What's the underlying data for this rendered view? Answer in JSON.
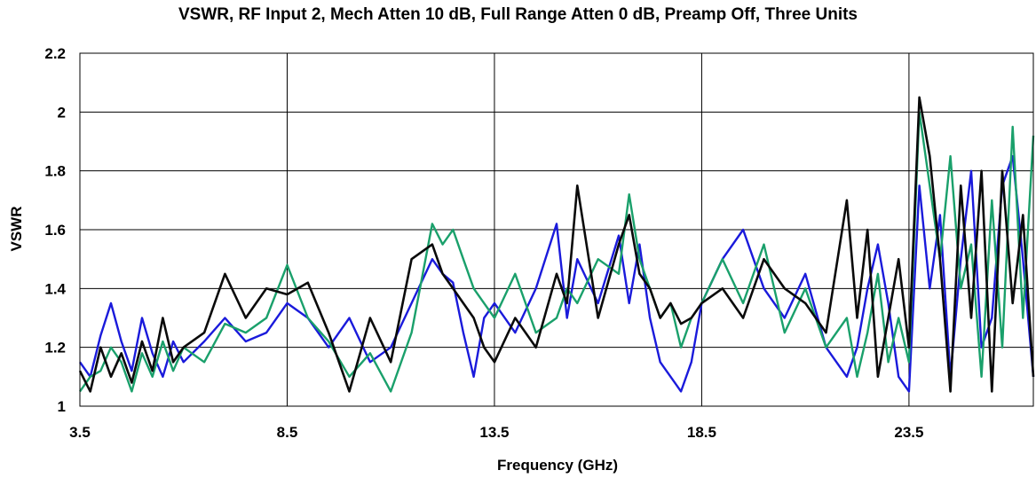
{
  "chart_data": {
    "type": "line",
    "title": "VSWR, RF Input 2, Mech Atten 10 dB, Full Range Atten 0 dB, Preamp Off, Three Units",
    "xlabel": "Frequency (GHz)",
    "ylabel": "VSWR",
    "xlim": [
      3.5,
      26.5
    ],
    "ylim": [
      1,
      2.2
    ],
    "xticks": [
      3.5,
      8.5,
      13.5,
      18.5,
      23.5
    ],
    "xtick_labels": [
      "3.5",
      "8.5",
      "13.5",
      "18.5",
      "23.5"
    ],
    "yticks": [
      1,
      1.2,
      1.4,
      1.6,
      1.8,
      2,
      2.2
    ],
    "ytick_labels": [
      "1",
      "1.2",
      "1.4",
      "1.6",
      "1.8",
      "2",
      "2.2"
    ],
    "grid": true,
    "legend": "none",
    "series": [
      {
        "color": "#1a1adb",
        "x": [
          3.5,
          3.75,
          4.0,
          4.25,
          4.5,
          4.75,
          5.0,
          5.25,
          5.5,
          5.75,
          6.0,
          6.5,
          7.0,
          7.5,
          8.0,
          8.5,
          9.0,
          9.5,
          10.0,
          10.5,
          11.0,
          11.5,
          12.0,
          12.25,
          12.5,
          12.75,
          13.0,
          13.25,
          13.5,
          14.0,
          14.5,
          15.0,
          15.25,
          15.5,
          16.0,
          16.5,
          16.75,
          17.0,
          17.25,
          17.5,
          17.75,
          18.0,
          18.25,
          18.5,
          19.0,
          19.5,
          20.0,
          20.5,
          21.0,
          21.5,
          22.0,
          22.25,
          22.5,
          22.75,
          23.0,
          23.25,
          23.5,
          23.75,
          24.0,
          24.25,
          24.5,
          24.75,
          25.0,
          25.25,
          25.5,
          25.75,
          26.0,
          26.25,
          26.5
        ],
        "y": [
          1.15,
          1.1,
          1.24,
          1.35,
          1.22,
          1.12,
          1.3,
          1.18,
          1.1,
          1.22,
          1.15,
          1.22,
          1.3,
          1.22,
          1.25,
          1.35,
          1.3,
          1.2,
          1.3,
          1.15,
          1.2,
          1.35,
          1.5,
          1.45,
          1.42,
          1.25,
          1.1,
          1.3,
          1.35,
          1.25,
          1.4,
          1.62,
          1.3,
          1.5,
          1.35,
          1.58,
          1.35,
          1.55,
          1.3,
          1.15,
          1.1,
          1.05,
          1.15,
          1.35,
          1.5,
          1.6,
          1.4,
          1.3,
          1.45,
          1.2,
          1.1,
          1.2,
          1.4,
          1.55,
          1.35,
          1.1,
          1.05,
          1.75,
          1.4,
          1.65,
          1.1,
          1.5,
          1.8,
          1.2,
          1.3,
          1.75,
          1.85,
          1.5,
          1.1
        ]
      },
      {
        "color": "#1aa06b",
        "x": [
          3.5,
          3.75,
          4.0,
          4.25,
          4.5,
          4.75,
          5.0,
          5.25,
          5.5,
          5.75,
          6.0,
          6.5,
          7.0,
          7.5,
          8.0,
          8.5,
          9.0,
          9.5,
          10.0,
          10.5,
          11.0,
          11.5,
          12.0,
          12.25,
          12.5,
          12.75,
          13.0,
          13.25,
          13.5,
          14.0,
          14.5,
          15.0,
          15.25,
          15.5,
          16.0,
          16.5,
          16.75,
          17.0,
          17.25,
          17.5,
          17.75,
          18.0,
          18.25,
          18.5,
          19.0,
          19.5,
          20.0,
          20.5,
          21.0,
          21.5,
          22.0,
          22.25,
          22.5,
          22.75,
          23.0,
          23.25,
          23.5,
          23.75,
          24.0,
          24.25,
          24.5,
          24.75,
          25.0,
          25.25,
          25.5,
          25.75,
          26.0,
          26.25,
          26.5
        ],
        "y": [
          1.05,
          1.1,
          1.12,
          1.2,
          1.15,
          1.05,
          1.18,
          1.1,
          1.22,
          1.12,
          1.2,
          1.15,
          1.28,
          1.25,
          1.3,
          1.48,
          1.3,
          1.22,
          1.1,
          1.18,
          1.05,
          1.25,
          1.62,
          1.55,
          1.6,
          1.5,
          1.4,
          1.35,
          1.3,
          1.45,
          1.25,
          1.3,
          1.4,
          1.35,
          1.5,
          1.45,
          1.72,
          1.5,
          1.4,
          1.3,
          1.35,
          1.2,
          1.3,
          1.35,
          1.5,
          1.35,
          1.55,
          1.25,
          1.4,
          1.2,
          1.3,
          1.1,
          1.25,
          1.45,
          1.15,
          1.3,
          1.15,
          2.0,
          1.75,
          1.5,
          1.85,
          1.4,
          1.55,
          1.1,
          1.7,
          1.2,
          1.95,
          1.3,
          1.92
        ]
      },
      {
        "color": "#0a0a0a",
        "x": [
          3.5,
          3.75,
          4.0,
          4.25,
          4.5,
          4.75,
          5.0,
          5.25,
          5.5,
          5.75,
          6.0,
          6.5,
          7.0,
          7.5,
          8.0,
          8.5,
          9.0,
          9.5,
          10.0,
          10.5,
          11.0,
          11.5,
          12.0,
          12.25,
          12.5,
          12.75,
          13.0,
          13.25,
          13.5,
          14.0,
          14.5,
          15.0,
          15.25,
          15.5,
          16.0,
          16.5,
          16.75,
          17.0,
          17.25,
          17.5,
          17.75,
          18.0,
          18.25,
          18.5,
          19.0,
          19.5,
          20.0,
          20.5,
          21.0,
          21.5,
          22.0,
          22.25,
          22.5,
          22.75,
          23.0,
          23.25,
          23.5,
          23.75,
          24.0,
          24.25,
          24.5,
          24.75,
          25.0,
          25.25,
          25.5,
          25.75,
          26.0,
          26.25,
          26.5
        ],
        "y": [
          1.12,
          1.05,
          1.2,
          1.1,
          1.18,
          1.08,
          1.22,
          1.12,
          1.3,
          1.15,
          1.2,
          1.25,
          1.45,
          1.3,
          1.4,
          1.38,
          1.42,
          1.25,
          1.05,
          1.3,
          1.15,
          1.5,
          1.55,
          1.45,
          1.4,
          1.35,
          1.3,
          1.2,
          1.15,
          1.3,
          1.2,
          1.45,
          1.35,
          1.75,
          1.3,
          1.55,
          1.65,
          1.45,
          1.4,
          1.3,
          1.35,
          1.28,
          1.3,
          1.35,
          1.4,
          1.3,
          1.5,
          1.4,
          1.35,
          1.25,
          1.7,
          1.3,
          1.6,
          1.1,
          1.3,
          1.5,
          1.2,
          2.05,
          1.85,
          1.5,
          1.05,
          1.75,
          1.3,
          1.8,
          1.05,
          1.8,
          1.35,
          1.65,
          1.1
        ]
      }
    ]
  }
}
